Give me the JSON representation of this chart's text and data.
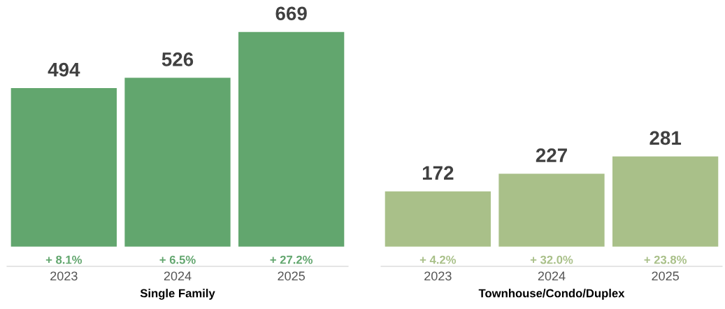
{
  "chart_data": [
    {
      "type": "bar",
      "xlabel": "Single Family",
      "categories": [
        "2023",
        "2024",
        "2025"
      ],
      "values": [
        494,
        526,
        669
      ],
      "color": "#62a66e",
      "data_labels": true,
      "annotations": [
        {
          "text": "+ 8.1%",
          "x": "2023",
          "y": 0
        },
        {
          "text": "+ 6.5%",
          "x": "2024",
          "y": 0
        },
        {
          "text": "+ 27.2%",
          "x": "2025",
          "y": 0
        }
      ]
    },
    {
      "type": "bar",
      "xlabel": "Townhouse/Condo/Duplex",
      "categories": [
        "2023",
        "2024",
        "2025"
      ],
      "values": [
        172,
        227,
        281
      ],
      "color": "#a9c089",
      "data_labels": true,
      "annotations": [
        {
          "text": "+ 4.2%",
          "x": "2023",
          "y": 0
        },
        {
          "text": "+ 32.0%",
          "x": "2024",
          "y": 0
        },
        {
          "text": "+ 23.8%",
          "x": "2025",
          "y": 0
        }
      ]
    }
  ]
}
